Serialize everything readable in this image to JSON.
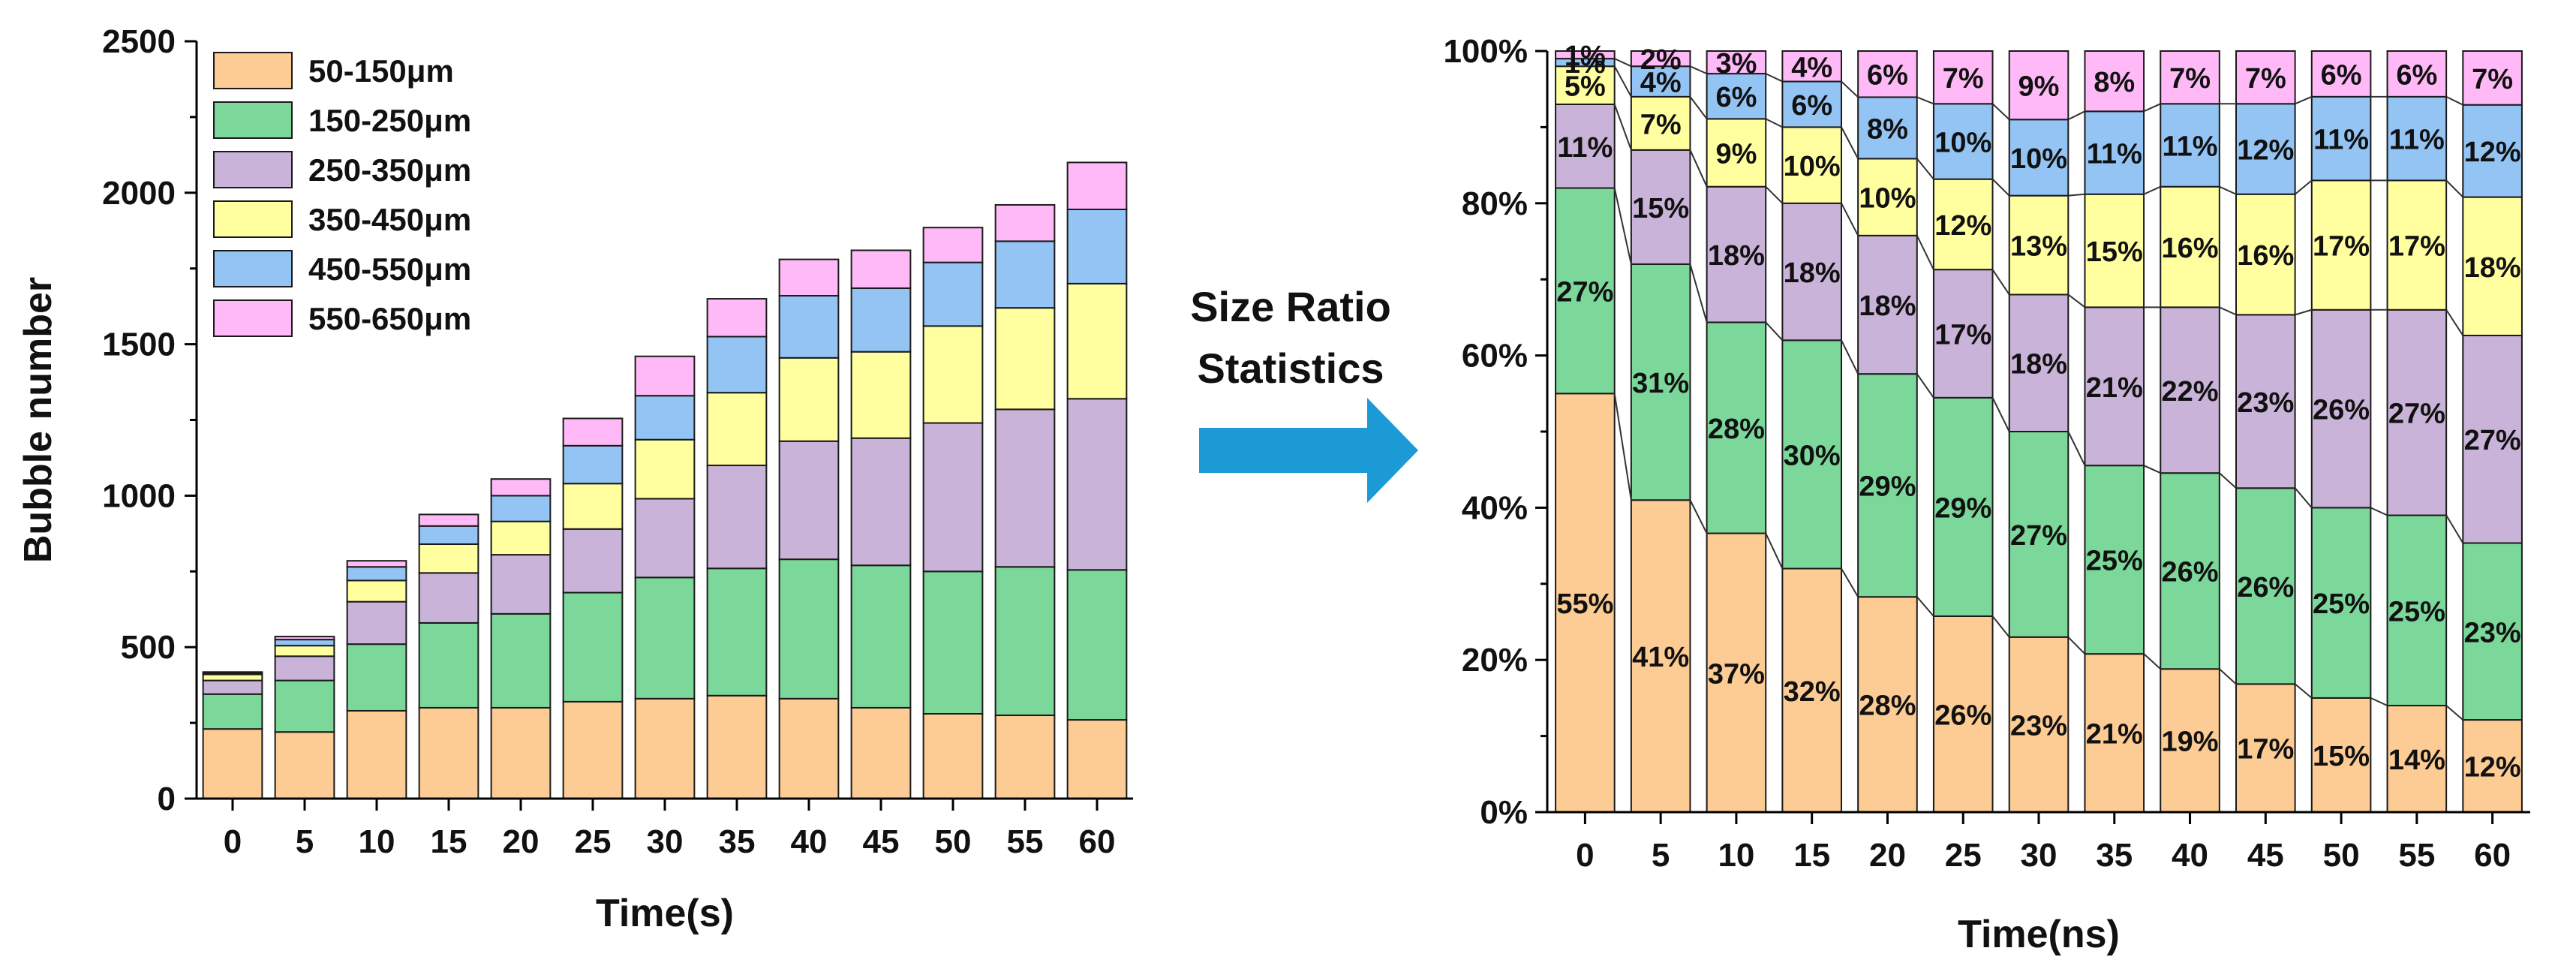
{
  "figure": {
    "middle_text": [
      "Size Ratio",
      "Statistics"
    ],
    "arrow_color": "#1B9AD6"
  },
  "chart_data": [
    {
      "type": "bar",
      "stacked": true,
      "title": "",
      "xlabel": "Time(s)",
      "ylabel": "Bubble number",
      "ylim": [
        0,
        2500
      ],
      "yticks": [
        0,
        500,
        1000,
        1500,
        2000,
        2500
      ],
      "categories": [
        "0",
        "5",
        "10",
        "15",
        "20",
        "25",
        "30",
        "35",
        "40",
        "45",
        "50",
        "55",
        "60"
      ],
      "legend_position": "top-left",
      "grid": false,
      "series": [
        {
          "name": "50-150μm",
          "color": "#FDCB94",
          "values": [
            230,
            220,
            290,
            300,
            300,
            320,
            330,
            340,
            330,
            300,
            280,
            275,
            260
          ]
        },
        {
          "name": "150-250μm",
          "color": "#7CD89A",
          "values": [
            115,
            170,
            220,
            280,
            310,
            360,
            400,
            420,
            460,
            470,
            470,
            490,
            495
          ]
        },
        {
          "name": "250-350μm",
          "color": "#C9B3D8",
          "values": [
            45,
            80,
            140,
            165,
            195,
            210,
            260,
            340,
            390,
            420,
            490,
            520,
            565
          ]
        },
        {
          "name": "350-450μm",
          "color": "#FFFFA0",
          "values": [
            20,
            35,
            70,
            95,
            110,
            150,
            195,
            240,
            275,
            285,
            320,
            335,
            380
          ]
        },
        {
          "name": "450-550μm",
          "color": "#93C4F3",
          "values": [
            5,
            20,
            45,
            60,
            85,
            125,
            145,
            185,
            205,
            210,
            210,
            220,
            245
          ]
        },
        {
          "name": "550-650μm",
          "color": "#FFB9F7",
          "values": [
            3,
            10,
            20,
            38,
            55,
            90,
            130,
            125,
            120,
            125,
            115,
            120,
            155
          ]
        }
      ]
    },
    {
      "type": "bar",
      "stacked": true,
      "percent": true,
      "title": "",
      "xlabel": "Time(ns)",
      "ylabel": "",
      "ylim": [
        0,
        100
      ],
      "yticks": [
        "0%",
        "20%",
        "40%",
        "60%",
        "80%",
        "100%"
      ],
      "categories": [
        "0",
        "5",
        "10",
        "15",
        "20",
        "25",
        "30",
        "35",
        "40",
        "45",
        "50",
        "55",
        "60"
      ],
      "grid": false,
      "series": [
        {
          "name": "50-150μm",
          "color": "#FDCB94",
          "values": [
            55,
            41,
            37,
            32,
            28,
            26,
            23,
            21,
            19,
            17,
            15,
            14,
            12
          ]
        },
        {
          "name": "150-250μm",
          "color": "#7CD89A",
          "values": [
            27,
            31,
            28,
            30,
            29,
            29,
            27,
            25,
            26,
            26,
            25,
            25,
            23
          ]
        },
        {
          "name": "250-350μm",
          "color": "#C9B3D8",
          "values": [
            11,
            15,
            18,
            18,
            18,
            17,
            18,
            21,
            22,
            23,
            26,
            27,
            27
          ]
        },
        {
          "name": "350-450μm",
          "color": "#FFFFA0",
          "values": [
            5,
            7,
            9,
            10,
            10,
            12,
            13,
            15,
            16,
            16,
            17,
            17,
            18
          ]
        },
        {
          "name": "450-550μm",
          "color": "#93C4F3",
          "values": [
            1,
            4,
            6,
            6,
            8,
            10,
            10,
            11,
            11,
            12,
            11,
            11,
            12
          ]
        },
        {
          "name": "550-650μm",
          "color": "#FFB9F7",
          "values": [
            1,
            2,
            3,
            4,
            6,
            7,
            9,
            8,
            7,
            7,
            6,
            6,
            7
          ]
        }
      ]
    }
  ]
}
